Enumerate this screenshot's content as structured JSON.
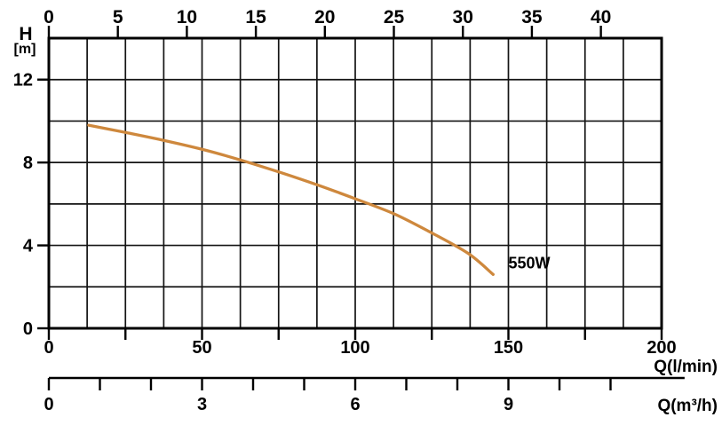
{
  "chart_data": {
    "type": "line",
    "grid": {
      "columns": 16,
      "rows": 7,
      "grid_on": true
    },
    "colors": {
      "axis": "#000000",
      "grid": "#141414",
      "background": "#ffffff",
      "curve": "#CE883D"
    },
    "y_axis": {
      "name": "H",
      "unit_label": "[m]",
      "min": 0,
      "max": 14,
      "grid_step_m": 2,
      "tick_values": [
        12,
        8,
        4,
        0
      ]
    },
    "x_axis_top": {
      "min": 0,
      "max": 44.4,
      "tick_values": [
        0,
        5,
        10,
        15,
        20,
        25,
        30,
        35,
        40
      ]
    },
    "x_axis_lmin": {
      "unit_label": "Q(l/min)",
      "min": 0,
      "max": 200,
      "minor_tick_step": 25,
      "label_values": [
        0,
        50,
        100,
        150,
        200
      ]
    },
    "x_axis_m3h": {
      "unit_label": "Q(m³/h)",
      "min": 0,
      "lmin_per_unit": 16.6667,
      "line_end_value": 12.45,
      "tick_values": [
        0,
        1,
        2,
        3,
        4,
        5,
        6,
        7,
        8,
        9,
        10,
        11
      ],
      "label_values": [
        0,
        3,
        6,
        9
      ]
    },
    "series": [
      {
        "label": "550W",
        "color": "#CE883D",
        "label_anchor_q_lmin": 150,
        "label_anchor_h_m": 3.2,
        "points_q_lmin_h_m": [
          [
            13,
            9.8
          ],
          [
            25,
            9.45
          ],
          [
            38,
            9.05
          ],
          [
            51,
            8.6
          ],
          [
            63,
            8.1
          ],
          [
            76,
            7.5
          ],
          [
            88,
            6.9
          ],
          [
            100,
            6.25
          ],
          [
            113,
            5.5
          ],
          [
            125,
            4.6
          ],
          [
            137,
            3.6
          ],
          [
            145,
            2.6
          ]
        ]
      }
    ]
  }
}
